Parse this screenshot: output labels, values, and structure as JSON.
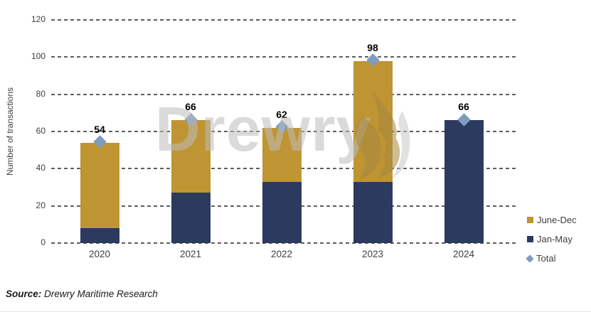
{
  "colors": {
    "june_dec": "#bf9433",
    "jan_may": "#2c3a5f",
    "total_marker": "#7f9cbf",
    "gridline": "#5e5e5e",
    "watermark_text": "#bdbdbd",
    "watermark_flame": "#a8893f",
    "value_label": "#000000",
    "tick_label": "#3f3f3f"
  },
  "chart_data": {
    "type": "bar",
    "stacked": true,
    "title": "",
    "xlabel": "",
    "ylabel": "Number of transactions",
    "categories": [
      "2020",
      "2021",
      "2022",
      "2023",
      "2024"
    ],
    "series": [
      {
        "name": "Jan-May",
        "color": "#2c3a5f",
        "values": [
          8,
          27,
          33,
          33,
          66
        ]
      },
      {
        "name": "June-Dec",
        "color": "#bf9433",
        "values": [
          46,
          39,
          29,
          65,
          0
        ]
      }
    ],
    "totals": {
      "name": "Total",
      "marker": "diamond",
      "color": "#7f9cbf",
      "values": [
        54,
        66,
        62,
        98,
        66
      ]
    },
    "ylim": [
      0,
      120
    ],
    "yticks": [
      0,
      20,
      40,
      60,
      80,
      100,
      120
    ],
    "grid": "horizontal-dashed",
    "legend_position": "right-bottom"
  },
  "legend": {
    "items": [
      {
        "label": "June-Dec",
        "swatch": "square",
        "color": "#bf9433"
      },
      {
        "label": "Jan-May",
        "swatch": "square",
        "color": "#2c3a5f"
      },
      {
        "label": "Total",
        "swatch": "diamond",
        "color": "#7f9cbf"
      }
    ]
  },
  "watermark": {
    "text": "Drewry",
    "flame_icon": "drewry-flame-icon"
  },
  "source": {
    "label": "Source:",
    "text": "Drewry Maritime Research"
  }
}
